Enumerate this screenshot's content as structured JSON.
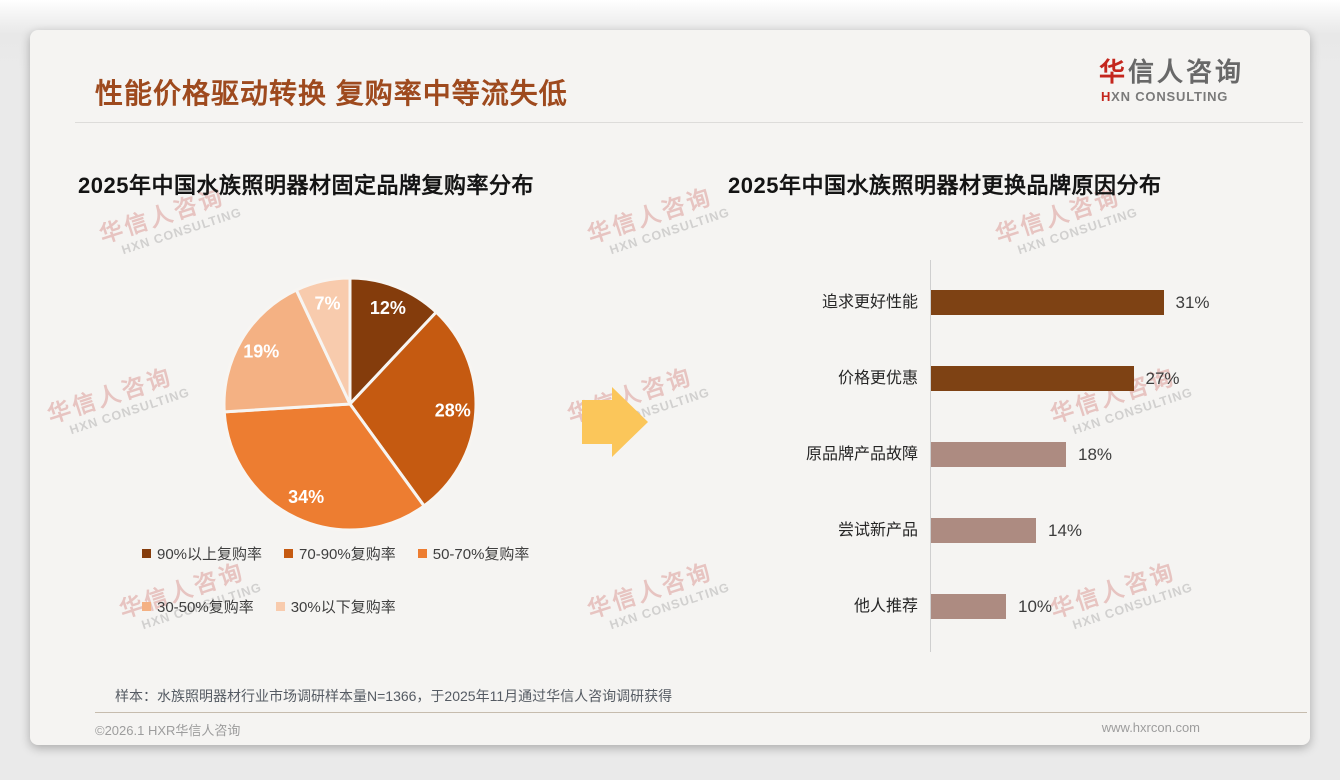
{
  "header": {
    "title": "性能价格驱动转换 复购率中等流失低",
    "logo": {
      "cn_first": "华",
      "cn_rest": "信人咨询",
      "en_first": "H",
      "en_rest": "XN CONSULTING"
    }
  },
  "colors": {
    "title_accent": "#9E4A1E",
    "logo_red": "#C4261D",
    "arrow": "#FBC65A",
    "bar_dark": "#7E4214",
    "bar_light": "#AD8B81",
    "pie_stroke": "#F7F5F2"
  },
  "watermark": {
    "cn": "华信人咨询",
    "en": "HXN CONSULTING"
  },
  "chart_data": [
    {
      "type": "pie",
      "title": "2025年中国水族照明器材固定品牌复购率分布",
      "labels": [
        "90%以上复购率",
        "70-90%复购率",
        "50-70%复购率",
        "30-50%复购率",
        "30%以下复购率"
      ],
      "values": [
        12,
        28,
        34,
        19,
        7
      ],
      "data_labels": [
        "12%",
        "28%",
        "34%",
        "19%",
        "7%"
      ],
      "colors": [
        "#843C0C",
        "#C55A11",
        "#ED7D31",
        "#F4B183",
        "#F8CBAD"
      ],
      "start_angle_deg": 0,
      "direction": "clockwise",
      "legend_position": "bottom"
    },
    {
      "type": "bar",
      "orientation": "horizontal",
      "title": "2025年中国水族照明器材更换品牌原因分布",
      "categories": [
        "追求更好性能",
        "价格更优惠",
        "原品牌产品故障",
        "尝试新产品",
        "他人推荐"
      ],
      "values": [
        31,
        27,
        18,
        14,
        10
      ],
      "value_labels": [
        "31%",
        "27%",
        "18%",
        "14%",
        "10%"
      ],
      "bar_colors": [
        "#7E4214",
        "#7E4214",
        "#AD8B81",
        "#AD8B81",
        "#AD8B81"
      ],
      "xlim": [
        0,
        33
      ],
      "grid": false,
      "legend_position": "none"
    }
  ],
  "footnote": "样本：水族照明器材行业市场调研样本量N=1366，于2025年11月通过华信人咨询调研获得",
  "footer": {
    "left": "©2026.1 HXR华信人咨询",
    "right": "www.hxrcon.com"
  }
}
